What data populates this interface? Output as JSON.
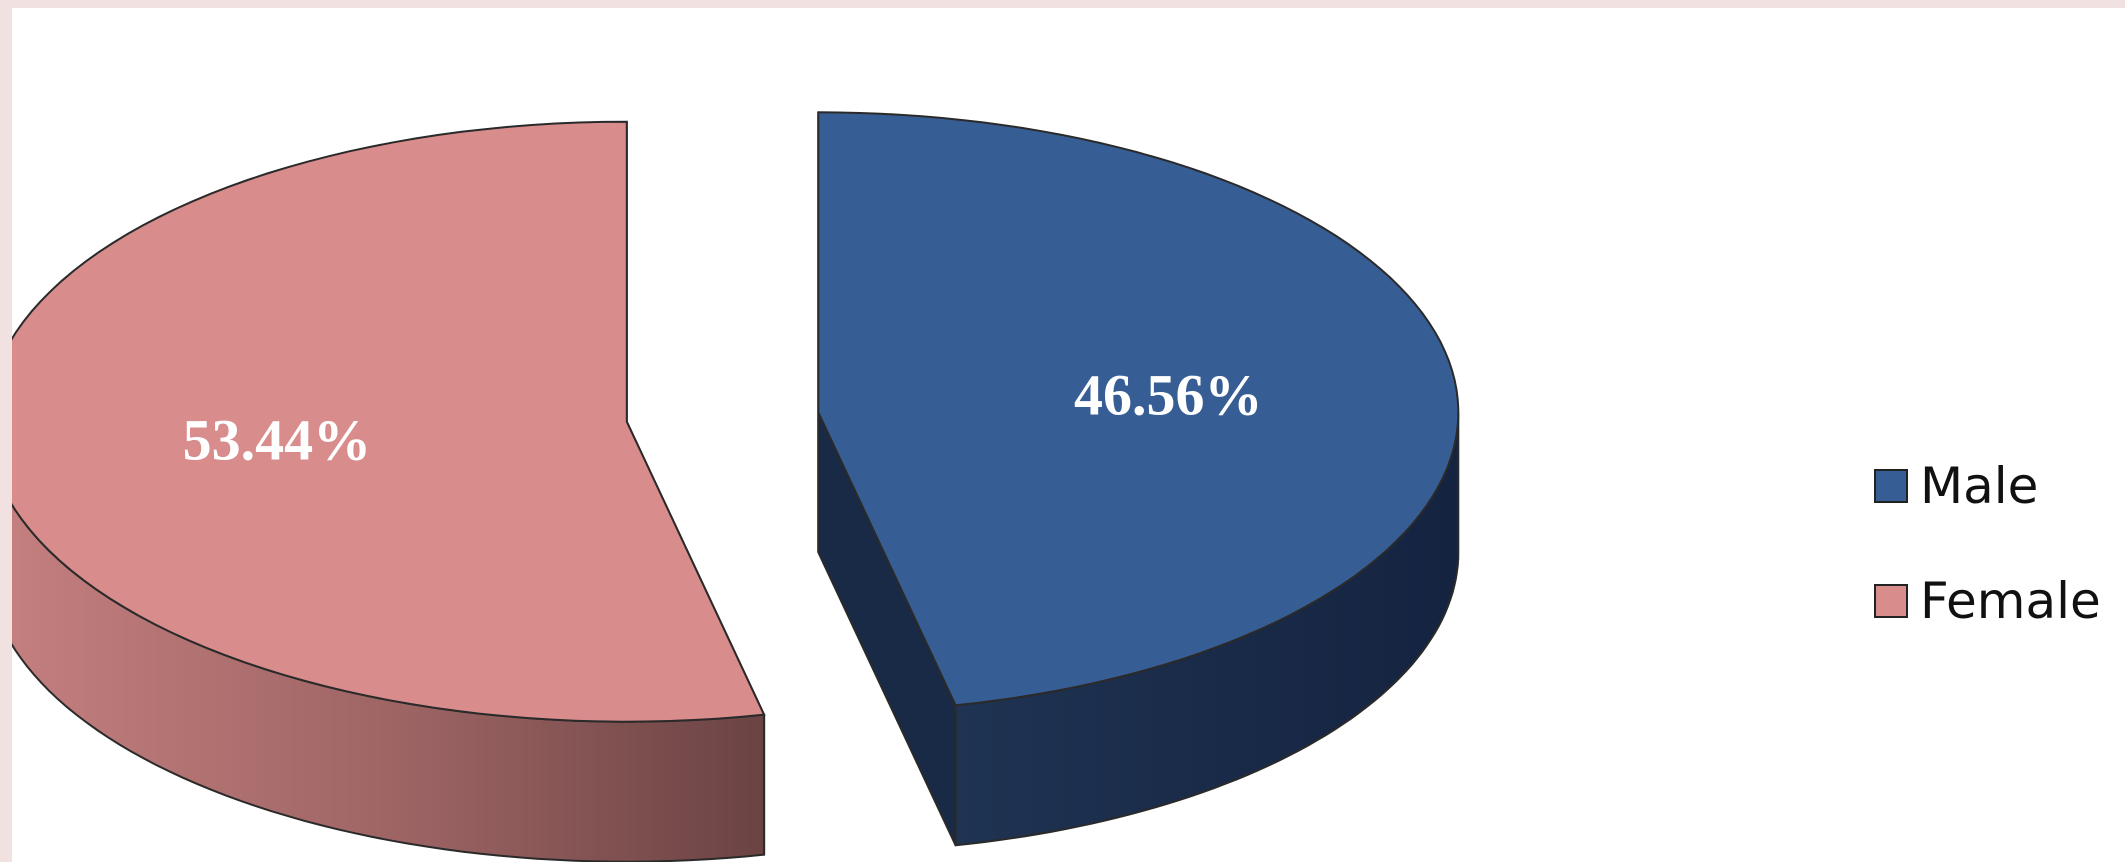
{
  "chart_data": {
    "type": "pie",
    "style": "3d-exploded",
    "categories": [
      "Male",
      "Female"
    ],
    "values": [
      46.56,
      53.44
    ],
    "labels": [
      "46.56%",
      "53.44%"
    ],
    "colors": {
      "Male": "#375e94",
      "Female": "#d98c8c"
    },
    "legend": {
      "position": "right",
      "items": [
        {
          "label": "Male",
          "color": "#375e94"
        },
        {
          "label": "Female",
          "color": "#d98c8c"
        }
      ]
    }
  }
}
